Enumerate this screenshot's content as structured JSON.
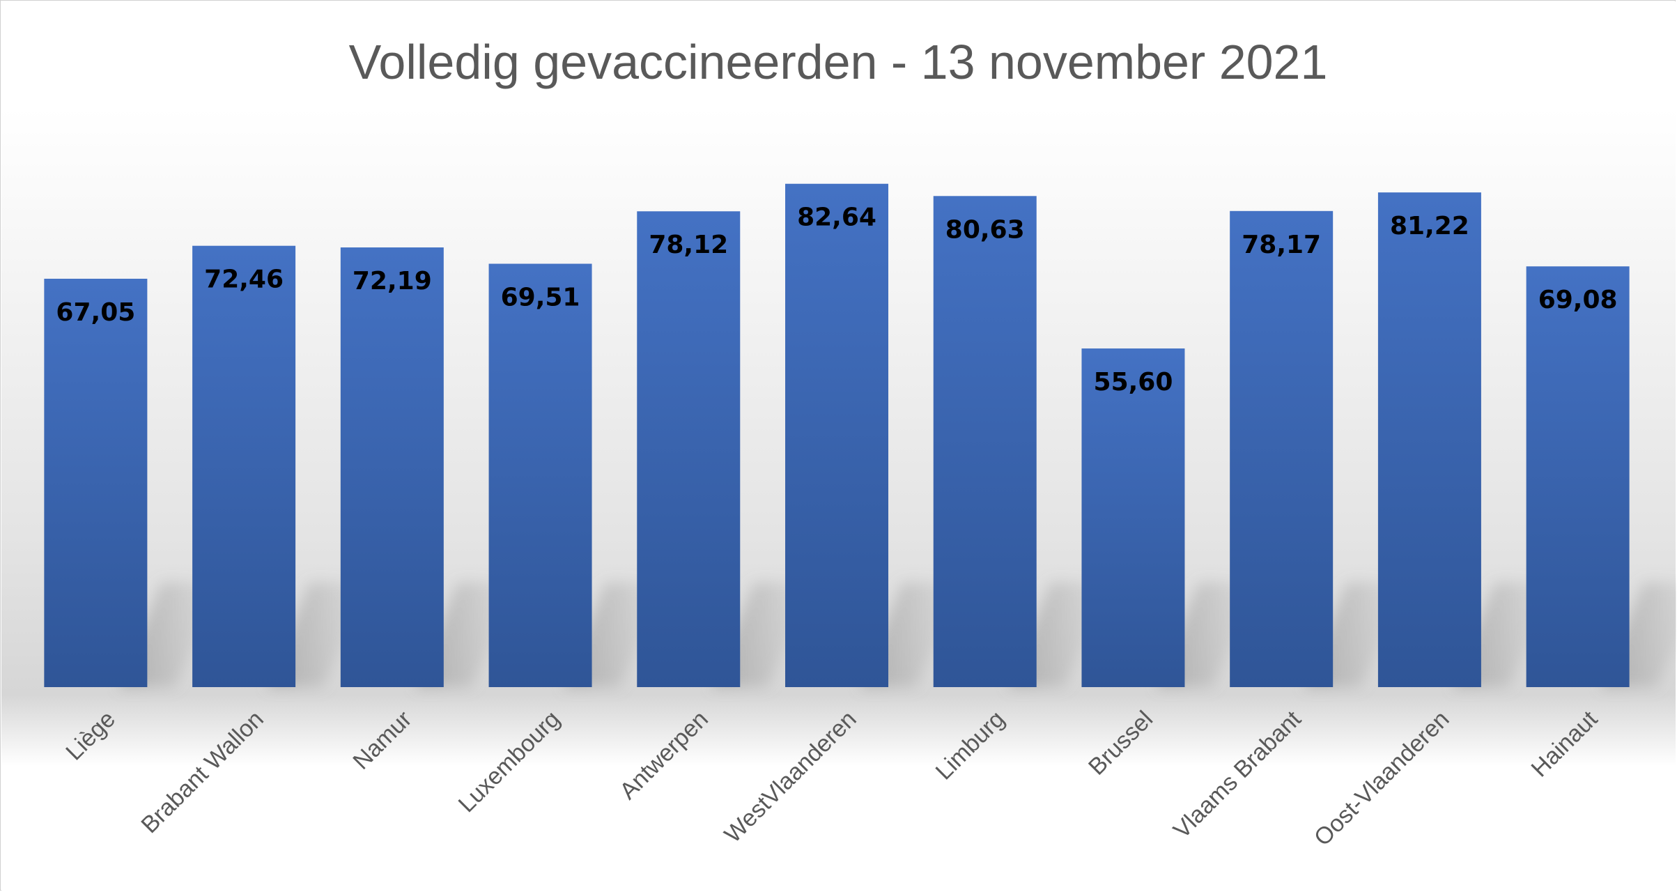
{
  "chart_data": {
    "type": "bar",
    "title": "Volledig gevaccineerden - 13 november 2021",
    "categories": [
      "Liège",
      "Brabant Wallon",
      "Namur",
      "Luxembourg",
      "Antwerpen",
      "WestVlaanderen",
      "Limburg",
      "Brussel",
      "Vlaams Brabant",
      "Oost-Vlaanderen",
      "Hainaut"
    ],
    "values": [
      67.05,
      72.46,
      72.19,
      69.51,
      78.12,
      82.64,
      80.63,
      55.6,
      78.17,
      81.22,
      69.08
    ],
    "value_labels": [
      "67,05",
      "72,46",
      "72,19",
      "69,51",
      "78,12",
      "82,64",
      "80,63",
      "55,60",
      "78,17",
      "81,22",
      "69,08"
    ],
    "xlabel": "",
    "ylabel": "",
    "ylim": [
      0,
      110
    ],
    "grid": false,
    "legend": "none",
    "colors": {
      "bar_top": "#4472C4",
      "bar_bottom": "#2F5597",
      "title": "#595959",
      "tick_label": "#595959",
      "value_label": "#000000",
      "background_fade": "#D9D9D9"
    }
  }
}
